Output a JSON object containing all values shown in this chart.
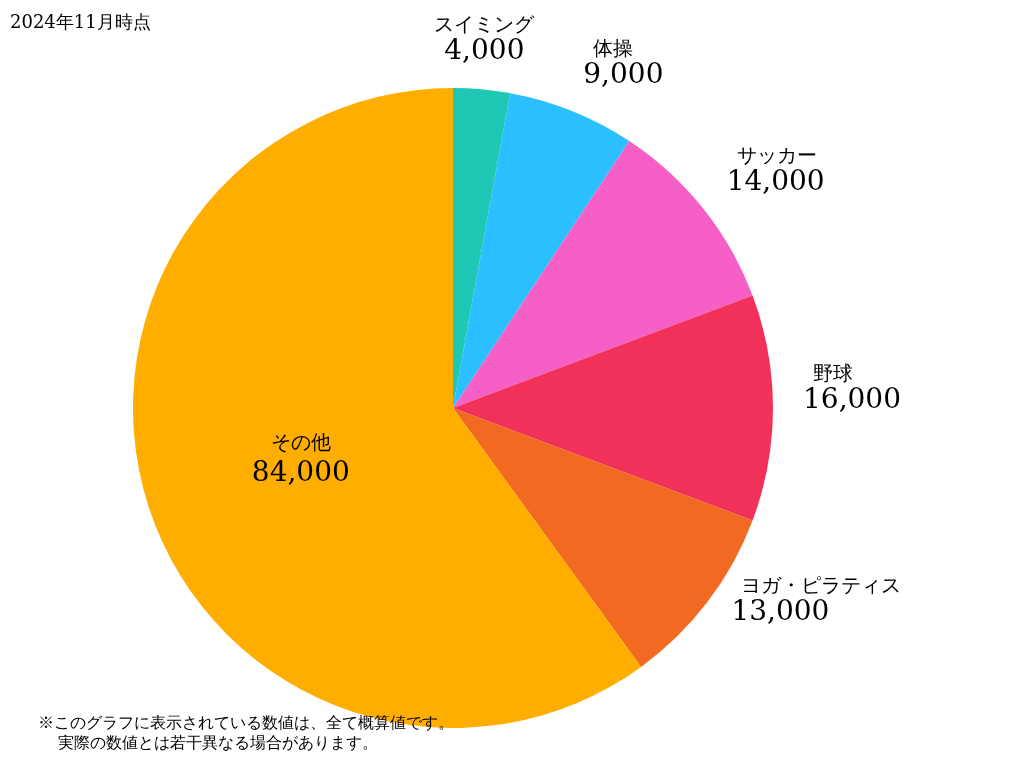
{
  "chart_data": {
    "type": "pie",
    "title": "2024年11月時点",
    "categories": [
      "スイミング",
      "体操",
      "サッカー",
      "野球",
      "ヨガ・ピラティス",
      "その他"
    ],
    "values": [
      4000,
      9000,
      14000,
      16000,
      13000,
      84000
    ],
    "value_labels": [
      "4,000",
      "9,000",
      "14,000",
      "16,000",
      "13,000",
      "84,000"
    ],
    "colors": [
      "#1ec8b4",
      "#2bbfff",
      "#f55fc6",
      "#f2315a",
      "#f26a22",
      "#ffae00"
    ],
    "annotations": [
      "※このグラフに表示されている数値は、全て概算値です。",
      "実際の数値とは若干異なる場合があります。"
    ]
  }
}
